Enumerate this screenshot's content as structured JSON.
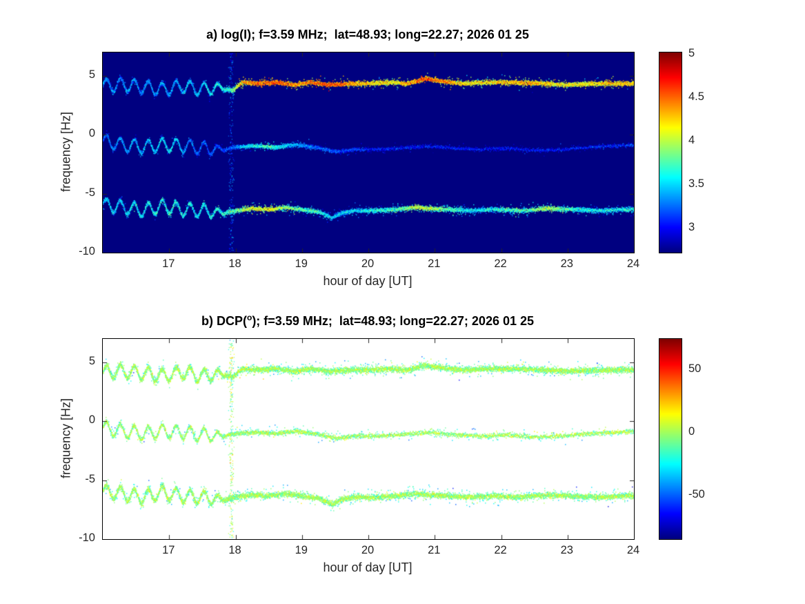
{
  "figure": {
    "background": "#ffffff"
  },
  "chart_data": {
    "type": "heatmap",
    "colormap": "jet",
    "x_axis": {
      "label": "hour of day [UT]",
      "lim": [
        16.0,
        24.0
      ],
      "ticks": [
        17,
        18,
        19,
        20,
        21,
        22,
        23,
        24
      ]
    },
    "y_axis": {
      "label": "frequency [Hz]",
      "lim": [
        -10,
        7
      ],
      "ticks": [
        5,
        0,
        -5,
        -10
      ]
    },
    "event_time": 17.93,
    "oscillation": {
      "until": 17.6,
      "amplitude": 0.55,
      "period": 0.21
    },
    "trace_centers": [
      [
        [
          16.0,
          4.2
        ],
        [
          16.3,
          4.3
        ],
        [
          16.6,
          4.1
        ],
        [
          16.9,
          3.9
        ],
        [
          17.2,
          4.2
        ],
        [
          17.5,
          3.9
        ],
        [
          17.75,
          4.1
        ],
        [
          17.95,
          3.8
        ],
        [
          18.1,
          4.5
        ],
        [
          18.3,
          4.4
        ],
        [
          18.6,
          4.5
        ],
        [
          18.9,
          4.3
        ],
        [
          19.1,
          4.5
        ],
        [
          19.4,
          4.3
        ],
        [
          19.7,
          4.4
        ],
        [
          20.0,
          4.4
        ],
        [
          20.3,
          4.5
        ],
        [
          20.6,
          4.4
        ],
        [
          20.85,
          4.8
        ],
        [
          21.1,
          4.6
        ],
        [
          21.4,
          4.4
        ],
        [
          21.8,
          4.5
        ],
        [
          22.2,
          4.5
        ],
        [
          22.6,
          4.4
        ],
        [
          23.0,
          4.3
        ],
        [
          23.4,
          4.4
        ],
        [
          23.8,
          4.4
        ],
        [
          24.0,
          4.4
        ]
      ],
      [
        [
          16.0,
          -0.5
        ],
        [
          16.3,
          -0.8
        ],
        [
          16.6,
          -1.0
        ],
        [
          16.9,
          -0.8
        ],
        [
          17.2,
          -0.9
        ],
        [
          17.5,
          -1.1
        ],
        [
          17.8,
          -1.2
        ],
        [
          18.0,
          -1.0
        ],
        [
          18.3,
          -0.9
        ],
        [
          18.6,
          -1.0
        ],
        [
          18.9,
          -0.8
        ],
        [
          19.2,
          -1.0
        ],
        [
          19.5,
          -1.4
        ],
        [
          19.8,
          -1.2
        ],
        [
          20.1,
          -1.2
        ],
        [
          20.5,
          -1.1
        ],
        [
          20.9,
          -0.9
        ],
        [
          21.3,
          -1.1
        ],
        [
          21.7,
          -1.2
        ],
        [
          22.1,
          -1.1
        ],
        [
          22.5,
          -1.3
        ],
        [
          22.9,
          -1.2
        ],
        [
          23.3,
          -1.0
        ],
        [
          23.7,
          -0.9
        ],
        [
          24.0,
          -0.8
        ]
      ],
      [
        [
          16.0,
          -5.9
        ],
        [
          16.3,
          -6.1
        ],
        [
          16.6,
          -6.4
        ],
        [
          16.9,
          -6.0
        ],
        [
          17.2,
          -6.3
        ],
        [
          17.5,
          -6.4
        ],
        [
          17.8,
          -6.6
        ],
        [
          18.0,
          -6.4
        ],
        [
          18.25,
          -6.2
        ],
        [
          18.5,
          -6.3
        ],
        [
          18.75,
          -6.1
        ],
        [
          19.0,
          -6.3
        ],
        [
          19.25,
          -6.5
        ],
        [
          19.45,
          -7.0
        ],
        [
          19.6,
          -6.6
        ],
        [
          19.8,
          -6.4
        ],
        [
          20.1,
          -6.4
        ],
        [
          20.4,
          -6.3
        ],
        [
          20.7,
          -6.1
        ],
        [
          20.9,
          -6.2
        ],
        [
          21.2,
          -6.3
        ],
        [
          21.5,
          -6.4
        ],
        [
          21.9,
          -6.3
        ],
        [
          22.3,
          -6.4
        ],
        [
          22.7,
          -6.2
        ],
        [
          23.1,
          -6.3
        ],
        [
          23.5,
          -6.4
        ],
        [
          23.8,
          -6.3
        ],
        [
          24.0,
          -6.3
        ]
      ]
    ],
    "panels": [
      {
        "name": "log_intensity",
        "title_prefix": "a) log(I); f=3.59 MHz;  lat=48.93; long=22.27; 2026 01 25",
        "title_sup": "",
        "title_suffix": "",
        "background": "#000080",
        "colorbar": {
          "clim": [
            2.72,
            5.02
          ],
          "ticks": [
            5,
            4.5,
            4,
            3.5,
            3
          ]
        },
        "trace_values": [
          [
            [
              16.0,
              3.4
            ],
            [
              16.8,
              3.4
            ],
            [
              17.5,
              3.5
            ],
            [
              17.9,
              3.7
            ],
            [
              18.05,
              4.3
            ],
            [
              18.3,
              4.5
            ],
            [
              18.6,
              4.6
            ],
            [
              19.0,
              4.4
            ],
            [
              19.3,
              4.6
            ],
            [
              19.6,
              4.5
            ],
            [
              20.0,
              4.3
            ],
            [
              20.4,
              4.2
            ],
            [
              20.85,
              4.6
            ],
            [
              21.2,
              4.4
            ],
            [
              21.6,
              4.2
            ],
            [
              22.0,
              4.3
            ],
            [
              22.4,
              4.4
            ],
            [
              22.8,
              4.2
            ],
            [
              23.2,
              4.2
            ],
            [
              23.6,
              4.3
            ],
            [
              24.0,
              4.3
            ]
          ],
          [
            [
              16.0,
              3.3
            ],
            [
              16.6,
              3.5
            ],
            [
              17.0,
              3.6
            ],
            [
              17.4,
              3.3
            ],
            [
              17.9,
              3.2
            ],
            [
              18.2,
              3.6
            ],
            [
              18.5,
              3.8
            ],
            [
              18.8,
              3.5
            ],
            [
              19.2,
              3.3
            ],
            [
              19.6,
              3.2
            ],
            [
              20.0,
              3.1
            ],
            [
              21.0,
              3.1
            ],
            [
              22.0,
              3.1
            ],
            [
              23.0,
              3.1
            ],
            [
              24.0,
              3.2
            ]
          ],
          [
            [
              16.0,
              3.5
            ],
            [
              16.5,
              3.6
            ],
            [
              17.0,
              3.7
            ],
            [
              17.5,
              3.6
            ],
            [
              17.95,
              3.8
            ],
            [
              18.2,
              4.1
            ],
            [
              18.5,
              4.2
            ],
            [
              18.8,
              3.9
            ],
            [
              19.2,
              3.7
            ],
            [
              19.5,
              3.5
            ],
            [
              19.9,
              3.6
            ],
            [
              20.3,
              3.7
            ],
            [
              20.8,
              4.1
            ],
            [
              21.2,
              3.8
            ],
            [
              21.6,
              3.6
            ],
            [
              22.0,
              3.7
            ],
            [
              22.4,
              3.8
            ],
            [
              22.7,
              4.0
            ],
            [
              23.1,
              3.7
            ],
            [
              23.5,
              3.6
            ],
            [
              24.0,
              3.7
            ]
          ]
        ],
        "trace_value_std": [
          0.25,
          0.2,
          0.25
        ],
        "trace_spread": [
          0.16,
          0.14,
          0.17
        ],
        "trace_density": [
          [
            [
              16,
              1
            ],
            [
              24,
              1
            ]
          ],
          [
            [
              16,
              0.9
            ],
            [
              19.3,
              0.85
            ],
            [
              19.9,
              0.5
            ],
            [
              21,
              0.4
            ],
            [
              24,
              0.4
            ]
          ],
          [
            [
              16,
              1
            ],
            [
              24,
              0.9
            ]
          ]
        ],
        "dots_per_column": 7,
        "fringe_drop": 0.3,
        "event": {
          "value_mean": 3.15,
          "value_std": 0.3,
          "density": 1
        },
        "seed": 1234
      },
      {
        "name": "dcp_phase",
        "title_prefix": "b) DCP(",
        "title_sup": "o",
        "title_suffix": "); f=3.59 MHz;  lat=48.93; long=22.27; 2026 01 25",
        "background": "#ffffff",
        "colorbar": {
          "clim": [
            -85,
            75
          ],
          "ticks": [
            50,
            0,
            -50
          ]
        },
        "trace_values": [
          [
            [
              16,
              2
            ],
            [
              24,
              2
            ]
          ],
          [
            [
              16,
              2
            ],
            [
              24,
              2
            ]
          ],
          [
            [
              16,
              2
            ],
            [
              24,
              2
            ]
          ]
        ],
        "trace_value_std": [
          18,
          18,
          18
        ],
        "trace_spread": [
          0.2,
          0.16,
          0.2
        ],
        "trace_density": [
          [
            [
              16,
              1
            ],
            [
              24,
              1
            ]
          ],
          [
            [
              16,
              0.85
            ],
            [
              19.9,
              0.5
            ],
            [
              24,
              0.45
            ]
          ],
          [
            [
              16,
              1
            ],
            [
              24,
              0.9
            ]
          ]
        ],
        "dots_per_column": 8,
        "fringe_drop": 15,
        "event": {
          "value_mean": 0,
          "value_std": 25,
          "density": 1
        },
        "seed": 999
      }
    ]
  }
}
